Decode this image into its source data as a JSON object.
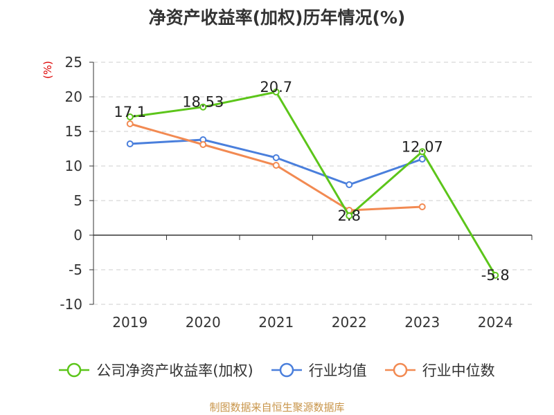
{
  "chart_data": {
    "type": "line",
    "title": "净资产收益率(加权)历年情况(%)",
    "ylabel": "(%)",
    "categories": [
      "2019",
      "2020",
      "2021",
      "2022",
      "2023",
      "2024"
    ],
    "ylim": [
      -10,
      25
    ],
    "yticks": [
      25,
      20,
      15,
      10,
      5,
      0,
      -5,
      -10
    ],
    "grid": true,
    "legend_position": "bottom",
    "series": [
      {
        "name": "公司净资产收益率(加权)",
        "color": "#5cc51a",
        "values": [
          17.1,
          18.53,
          20.7,
          2.8,
          12.07,
          -5.8
        ],
        "labels": [
          "17.1",
          "18.53",
          "20.7",
          "2.8",
          "12.07",
          "-5.8"
        ]
      },
      {
        "name": "行业均值",
        "color": "#4a7fdc",
        "values": [
          13.2,
          13.8,
          11.2,
          7.3,
          11.0,
          null
        ]
      },
      {
        "name": "行业中位数",
        "color": "#f28a52",
        "values": [
          16.1,
          13.1,
          10.1,
          3.6,
          4.1,
          null
        ]
      }
    ]
  },
  "source": "制图数据来自恒生聚源数据库"
}
